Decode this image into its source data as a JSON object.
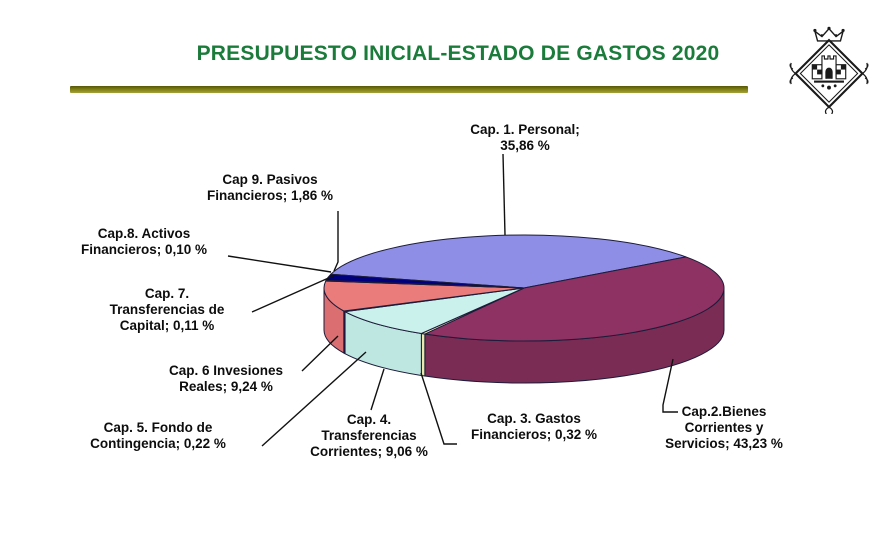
{
  "header": {
    "title": "PRESUPUESTO INICIAL-ESTADO DE GASTOS 2020",
    "title_color": "#1B7B3B",
    "rule_color": "#7d7d12",
    "logo": "municipal coat of arms (black and white heraldic emblem: crown over lozenge with castle)"
  },
  "chart_data": {
    "type": "pie",
    "style": "3d-exploded-none",
    "title": "PRESUPUESTO INICIAL-ESTADO DE GASTOS 2020",
    "unit": "%",
    "decimal_separator": ",",
    "legend": "none",
    "labels_position": "outside-with-leader-lines",
    "start_angle_deg": -75,
    "slices": [
      {
        "id": "cap1",
        "name": "Cap. 1. Personal",
        "value_pct": 35.86,
        "display": "Cap. 1. Personal;\n35,86 %",
        "color": "#8E8EE6",
        "side_color": "#6F6FC8"
      },
      {
        "id": "cap2",
        "name": "Cap.2.Bienes Corrientes y Servicios",
        "value_pct": 43.23,
        "display": "Cap.2.Bienes\nCorrientes y\nServicios; 43,23 %",
        "color": "#8E3263",
        "side_color": "#7A2C55"
      },
      {
        "id": "cap3",
        "name": "Cap. 3. Gastos Financieros",
        "value_pct": 0.32,
        "display": "Cap. 3. Gastos\nFinancieros; 0,32 %",
        "color": "#FFFFCC",
        "side_color": "#E9E9AE"
      },
      {
        "id": "cap4",
        "name": "Cap. 4. Transferencias Corrientes",
        "value_pct": 9.06,
        "display": "Cap. 4.\nTransferencias\nCorrientes; 9,06 %",
        "color": "#CBF1EC",
        "side_color": "#BFE7E1"
      },
      {
        "id": "cap5",
        "name": "Cap. 5. Fondo de Contingencia",
        "value_pct": 0.22,
        "display": "Cap. 5. Fondo  de\nContingencia; 0,22 %",
        "color": "#660066",
        "side_color": "#520052"
      },
      {
        "id": "cap6",
        "name": "Cap. 6 Invesiones Reales",
        "value_pct": 9.24,
        "display": "Cap. 6 Invesiones\nReales; 9,24 %",
        "color": "#EA7C7C",
        "side_color": "#DA6E71"
      },
      {
        "id": "cap7",
        "name": "Cap. 7. Transferencias de Capital",
        "value_pct": 0.11,
        "display": "Cap. 7.\nTransferencias de\nCapital; 0,11 %",
        "color": "#0066CC",
        "side_color": "#0052A3"
      },
      {
        "id": "cap8",
        "name": "Cap.8. Activos Financieros",
        "value_pct": 0.1,
        "display": "Cap.8. Activos\nFinancieros; 0,10 %",
        "color": "#CCCCFF",
        "side_color": "#ABABDD"
      },
      {
        "id": "cap9",
        "name": "Cap 9. Pasivos Financieros",
        "value_pct": 1.86,
        "display": "Cap 9. Pasivos\nFinancieros; 1,86 %",
        "color": "#00007E",
        "side_color": "#000060"
      }
    ]
  }
}
